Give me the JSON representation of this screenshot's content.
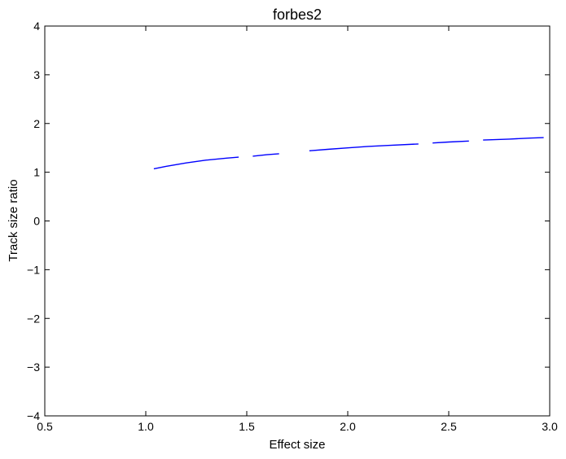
{
  "chart_data": {
    "type": "line",
    "title": "forbes2",
    "xlabel": "Effect size",
    "ylabel": "Track size ratio",
    "xlim": [
      0.5,
      3.0
    ],
    "ylim": [
      -4,
      4
    ],
    "x_ticks": [
      "0.5",
      "1.0",
      "1.5",
      "2.0",
      "2.5",
      "3.0"
    ],
    "y_ticks": [
      "4",
      "3",
      "2",
      "1",
      "0",
      "−1",
      "−2",
      "−3",
      "−4"
    ],
    "grid": false,
    "legend": "none",
    "series": [
      {
        "color": "#0000ff",
        "segments": [
          {
            "x": [
              1.04,
              1.1,
              1.2,
              1.3,
              1.4,
              1.46
            ],
            "y": [
              1.07,
              1.12,
              1.19,
              1.25,
              1.29,
              1.31
            ]
          },
          {
            "x": [
              1.53,
              1.6,
              1.66
            ],
            "y": [
              1.33,
              1.36,
              1.38
            ]
          },
          {
            "x": [
              1.81,
              1.9,
              2.0,
              2.1,
              2.2,
              2.35
            ],
            "y": [
              1.44,
              1.47,
              1.5,
              1.53,
              1.55,
              1.58
            ]
          },
          {
            "x": [
              2.42,
              2.5,
              2.6
            ],
            "y": [
              1.6,
              1.62,
              1.64
            ]
          },
          {
            "x": [
              2.67,
              2.8,
              2.9,
              2.97
            ],
            "y": [
              1.66,
              1.68,
              1.7,
              1.71
            ]
          }
        ]
      }
    ]
  }
}
